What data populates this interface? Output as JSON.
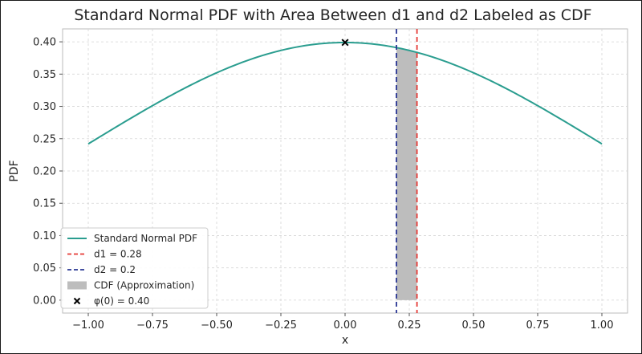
{
  "chart_data": {
    "type": "line",
    "title": "Standard Normal PDF with Area Between d1 and d2 Labeled as CDF",
    "xlabel": "x",
    "ylabel": "PDF",
    "xlim": [
      -1.1,
      1.1
    ],
    "ylim": [
      -0.02,
      0.42
    ],
    "grid": true,
    "x_ticks": [
      -1.0,
      -0.75,
      -0.5,
      -0.25,
      0.0,
      0.25,
      0.5,
      0.75,
      1.0
    ],
    "x_tick_labels": [
      "−1.00",
      "−0.75",
      "−0.50",
      "−0.25",
      "0.00",
      "0.25",
      "0.50",
      "0.75",
      "1.00"
    ],
    "y_ticks": [
      0.0,
      0.05,
      0.1,
      0.15,
      0.2,
      0.25,
      0.3,
      0.35,
      0.4
    ],
    "y_tick_labels": [
      "0.00",
      "0.05",
      "0.10",
      "0.15",
      "0.20",
      "0.25",
      "0.30",
      "0.35",
      "0.40"
    ],
    "series": [
      {
        "name": "Standard Normal PDF",
        "color": "#2a9d8f",
        "function": "standard_normal_pdf",
        "x_range": [
          -1.0,
          1.0
        ],
        "points": [
          [
            -1.0,
            0.242
          ],
          [
            -0.5,
            0.352
          ],
          [
            0.0,
            0.399
          ],
          [
            0.2,
            0.391
          ],
          [
            0.28,
            0.384
          ],
          [
            0.5,
            0.352
          ],
          [
            1.0,
            0.242
          ]
        ]
      }
    ],
    "vlines": [
      {
        "name": "d1 = 0.28",
        "x": 0.28,
        "color": "#e53935",
        "style": "dashed"
      },
      {
        "name": "d2 = 0.2",
        "x": 0.2,
        "color": "#283593",
        "style": "dashed"
      }
    ],
    "shaded_area": {
      "name": "CDF (Approximation)",
      "from": 0.2,
      "to": 0.28,
      "color": "#bdbdbd"
    },
    "marker": {
      "name": "φ(0) = 0.40",
      "x": 0.0,
      "y": 0.399,
      "symbol": "x",
      "color": "#000000"
    },
    "legend": {
      "location": "lower-left",
      "entries": [
        {
          "label": "Standard Normal PDF",
          "kind": "line",
          "color": "#2a9d8f"
        },
        {
          "label": "d1 = 0.28",
          "kind": "dashed",
          "color": "#e53935"
        },
        {
          "label": "d2 = 0.2",
          "kind": "dashed",
          "color": "#283593"
        },
        {
          "label": "CDF (Approximation)",
          "kind": "patch",
          "color": "#bdbdbd"
        },
        {
          "label": "φ(0) = 0.40",
          "kind": "marker",
          "color": "#000000"
        }
      ]
    }
  }
}
